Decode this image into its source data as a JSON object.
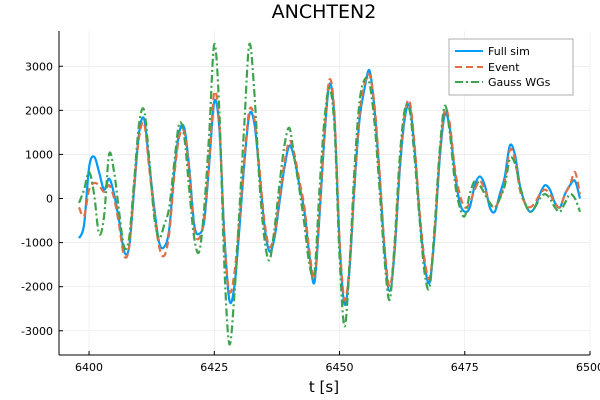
{
  "chart_data": {
    "type": "line",
    "title": "ANCHTEN2",
    "xlabel": "t [s]",
    "ylabel": "",
    "xlim": [
      6394,
      6500
    ],
    "ylim": [
      -3550,
      3800
    ],
    "xticks": [
      6400,
      6425,
      6450,
      6475,
      6500
    ],
    "yticks": [
      -3000,
      -2000,
      -1000,
      0,
      1000,
      2000,
      3000
    ],
    "grid": true,
    "legend_position": "top-right",
    "series": [
      {
        "name": "Full sim",
        "color": "#009af9",
        "dash": "solid",
        "x": [
          6398,
          6399,
          6400,
          6401,
          6402,
          6403,
          6404,
          6405,
          6406,
          6407,
          6408,
          6409,
          6410,
          6411,
          6412,
          6413,
          6414,
          6415,
          6416,
          6417,
          6418,
          6419,
          6420,
          6421,
          6422,
          6423,
          6424,
          6425,
          6426,
          6427,
          6428,
          6429,
          6430,
          6431,
          6432,
          6433,
          6434,
          6435,
          6436,
          6437,
          6438,
          6439,
          6440,
          6441,
          6442,
          6443,
          6444,
          6445,
          6446,
          6447,
          6448,
          6449,
          6450,
          6451,
          6452,
          6453,
          6454,
          6455,
          6456,
          6457,
          6458,
          6459,
          6460,
          6461,
          6462,
          6463,
          6464,
          6465,
          6466,
          6467,
          6468,
          6469,
          6470,
          6471,
          6472,
          6473,
          6474,
          6475,
          6476,
          6477,
          6478,
          6479,
          6480,
          6481,
          6482,
          6483,
          6484,
          6485,
          6486,
          6487,
          6488,
          6489,
          6490,
          6491,
          6492,
          6493,
          6494,
          6495,
          6496,
          6497,
          6498
        ],
        "y": [
          -900,
          -600,
          700,
          950,
          600,
          200,
          450,
          100,
          -500,
          -1200,
          -1100,
          200,
          1500,
          1800,
          800,
          -200,
          -1000,
          -1100,
          -700,
          600,
          1500,
          1600,
          700,
          -600,
          -800,
          -500,
          800,
          2200,
          1600,
          -800,
          -2300,
          -2000,
          -700,
          800,
          1900,
          1700,
          600,
          -600,
          -1200,
          -900,
          -100,
          700,
          1200,
          900,
          300,
          -300,
          -1300,
          -1900,
          -400,
          1400,
          2600,
          1800,
          -1000,
          -2400,
          -1600,
          300,
          1800,
          2500,
          2900,
          2000,
          500,
          -1200,
          -2100,
          -1200,
          600,
          1800,
          2100,
          1100,
          -400,
          -1500,
          -1900,
          -800,
          900,
          1900,
          1600,
          600,
          -100,
          -300,
          -200,
          300,
          500,
          300,
          -200,
          -300,
          100,
          500,
          1200,
          1000,
          300,
          -100,
          -300,
          -200,
          100,
          300,
          200,
          -100,
          -200,
          100,
          300,
          400,
          0
        ]
      },
      {
        "name": "Event",
        "color": "#e26f46",
        "dash": "dash",
        "x": [
          6398,
          6399,
          6400,
          6401,
          6402,
          6403,
          6404,
          6405,
          6406,
          6407,
          6408,
          6409,
          6410,
          6411,
          6412,
          6413,
          6414,
          6415,
          6416,
          6417,
          6418,
          6419,
          6420,
          6421,
          6422,
          6423,
          6424,
          6425,
          6426,
          6427,
          6428,
          6429,
          6430,
          6431,
          6432,
          6433,
          6434,
          6435,
          6436,
          6437,
          6438,
          6439,
          6440,
          6441,
          6442,
          6443,
          6444,
          6445,
          6446,
          6447,
          6448,
          6449,
          6450,
          6451,
          6452,
          6453,
          6454,
          6455,
          6456,
          6457,
          6458,
          6459,
          6460,
          6461,
          6462,
          6463,
          6464,
          6465,
          6466,
          6467,
          6468,
          6469,
          6470,
          6471,
          6472,
          6473,
          6474,
          6475,
          6476,
          6477,
          6478,
          6479,
          6480,
          6481,
          6482,
          6483,
          6484,
          6485,
          6486,
          6487,
          6488,
          6489,
          6490,
          6491,
          6492,
          6493,
          6494,
          6495,
          6496,
          6497,
          6498
        ],
        "y": [
          -200,
          -400,
          200,
          350,
          300,
          150,
          300,
          0,
          -600,
          -1300,
          -1100,
          300,
          1400,
          1700,
          700,
          -300,
          -1100,
          -1300,
          -800,
          500,
          1400,
          1500,
          600,
          -700,
          -900,
          -400,
          900,
          2400,
          1700,
          -900,
          -2100,
          -1700,
          -500,
          900,
          2000,
          1800,
          700,
          -500,
          -1100,
          -800,
          0,
          800,
          1300,
          1000,
          400,
          -200,
          -1200,
          -1800,
          -300,
          1500,
          2700,
          1900,
          -900,
          -2300,
          -1500,
          400,
          1900,
          2600,
          2800,
          2100,
          600,
          -1100,
          -2000,
          -1100,
          700,
          1900,
          2200,
          1200,
          -300,
          -1400,
          -1800,
          -700,
          1000,
          2000,
          1700,
          700,
          100,
          -200,
          -100,
          200,
          400,
          200,
          -100,
          -200,
          0,
          400,
          1100,
          900,
          200,
          -100,
          -200,
          -100,
          100,
          200,
          100,
          -100,
          -200,
          100,
          300,
          600,
          100
        ]
      },
      {
        "name": "Gauss WGs",
        "color": "#3da44d",
        "dash": "dashdot",
        "x": [
          6398,
          6399,
          6400,
          6401,
          6402,
          6403,
          6404,
          6405,
          6406,
          6407,
          6408,
          6409,
          6410,
          6411,
          6412,
          6413,
          6414,
          6415,
          6416,
          6417,
          6418,
          6419,
          6420,
          6421,
          6422,
          6423,
          6424,
          6425,
          6426,
          6427,
          6428,
          6429,
          6430,
          6431,
          6432,
          6433,
          6434,
          6435,
          6436,
          6437,
          6438,
          6439,
          6440,
          6441,
          6442,
          6443,
          6444,
          6445,
          6446,
          6447,
          6448,
          6449,
          6450,
          6451,
          6452,
          6453,
          6454,
          6455,
          6456,
          6457,
          6458,
          6459,
          6460,
          6461,
          6462,
          6463,
          6464,
          6465,
          6466,
          6467,
          6468,
          6469,
          6470,
          6471,
          6472,
          6473,
          6474,
          6475,
          6476,
          6477,
          6478,
          6479,
          6480,
          6481,
          6482,
          6483,
          6484,
          6485,
          6486,
          6487,
          6488,
          6489,
          6490,
          6491,
          6492,
          6493,
          6494,
          6495,
          6496,
          6497,
          6498
        ],
        "y": [
          -100,
          200,
          600,
          100,
          -800,
          -400,
          1000,
          600,
          -300,
          -1100,
          -900,
          400,
          1700,
          2000,
          900,
          -400,
          -900,
          -600,
          -200,
          800,
          1700,
          1400,
          200,
          -900,
          -1200,
          -200,
          1500,
          3500,
          2000,
          -1500,
          -3300,
          -2200,
          -300,
          1700,
          3500,
          2400,
          400,
          -900,
          -1400,
          -700,
          300,
          1200,
          1600,
          900,
          200,
          -600,
          -1500,
          -1700,
          200,
          1800,
          2500,
          1600,
          -1300,
          -2900,
          -1500,
          700,
          2200,
          2700,
          2600,
          1700,
          200,
          -1400,
          -2300,
          -1000,
          900,
          2000,
          2000,
          900,
          -500,
          -1700,
          -2000,
          -600,
          1100,
          2100,
          1500,
          400,
          -200,
          -400,
          100,
          400,
          300,
          100,
          -100,
          -200,
          0,
          300,
          900,
          800,
          300,
          -100,
          -300,
          -200,
          0,
          100,
          0,
          -200,
          -300,
          -100,
          100,
          0,
          -300
        ]
      }
    ]
  }
}
